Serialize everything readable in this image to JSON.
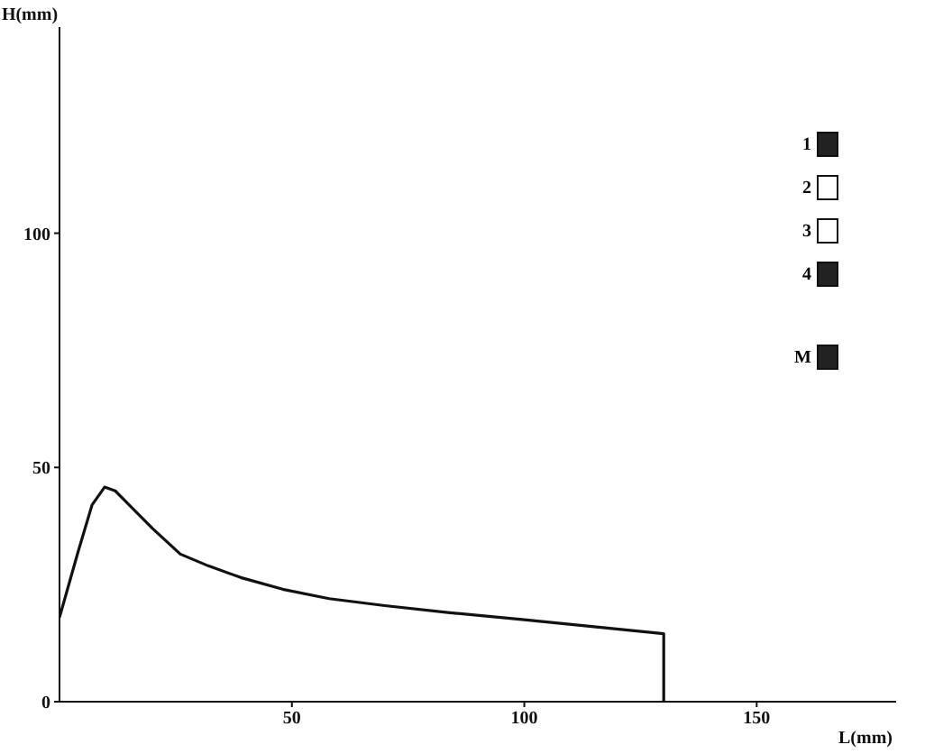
{
  "chart_data": {
    "type": "line",
    "xlabel": "L(mm)",
    "ylabel": "H(mm)",
    "x": [
      0,
      4,
      7,
      9.7,
      12,
      16,
      20,
      26,
      32,
      39,
      48,
      58,
      70,
      84,
      100,
      115,
      130,
      130
    ],
    "series": [
      {
        "color": "#111111",
        "values": [
          18,
          32,
          42,
          45.8,
          45,
          41,
          37,
          31.5,
          29,
          26.5,
          24,
          22,
          20.5,
          19,
          17.5,
          16,
          14.5,
          0
        ]
      }
    ],
    "xlim": [
      0,
      180
    ],
    "xticks": [
      50,
      100,
      150
    ],
    "ylim": [
      0,
      144
    ],
    "yticks": [
      0,
      50,
      100
    ],
    "grid": false,
    "legend": false,
    "marker": "none",
    "line_style": "solid",
    "annotations": [
      "1",
      "2",
      "3",
      "4",
      "M"
    ]
  }
}
